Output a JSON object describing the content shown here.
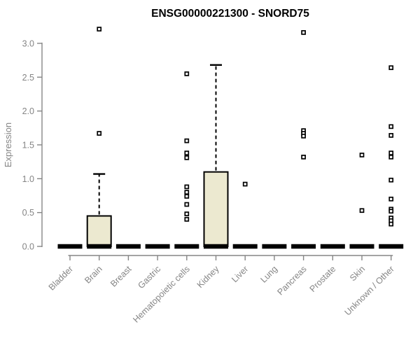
{
  "chart_data": {
    "type": "boxplot",
    "title": "ENSG00000221300 - SNORD75",
    "xlabel": "",
    "ylabel": "Expression",
    "ylim": [
      0,
      3.3
    ],
    "yticks": [
      0,
      0.5,
      1,
      1.5,
      2,
      2.5,
      3
    ],
    "ytick_labels": [
      "0.0",
      "0.5",
      "1.0",
      "1.5",
      "2.0",
      "2.5",
      "3.0"
    ],
    "grid": false,
    "legend": null,
    "marker": "open-square",
    "categories": [
      "Bladder",
      "Brain",
      "Breast",
      "Gastric",
      "Hematopoietic cells",
      "Kidney",
      "Liver",
      "Lung",
      "Pancreas",
      "Prostate",
      "Skin",
      "Unknown / Other"
    ],
    "boxes": [
      {
        "category": "Bladder",
        "low": 0,
        "q1": 0,
        "median": 0,
        "q3": 0,
        "high": 0,
        "outliers": []
      },
      {
        "category": "Brain",
        "low": 0,
        "q1": 0,
        "median": 0,
        "q3": 0.45,
        "high": 1.07,
        "outliers": [
          3.21,
          1.67
        ]
      },
      {
        "category": "Breast",
        "low": 0,
        "q1": 0,
        "median": 0,
        "q3": 0,
        "high": 0,
        "outliers": []
      },
      {
        "category": "Gastric",
        "low": 0,
        "q1": 0,
        "median": 0,
        "q3": 0,
        "high": 0,
        "outliers": []
      },
      {
        "category": "Hematopoietic cells",
        "low": 0,
        "q1": 0,
        "median": 0,
        "q3": 0,
        "high": 0,
        "outliers": [
          2.55,
          1.56,
          1.38,
          1.31,
          0.88,
          0.8,
          0.74,
          0.62,
          0.48,
          0.4
        ]
      },
      {
        "category": "Kidney",
        "low": 0,
        "q1": 0,
        "median": 0,
        "q3": 1.1,
        "high": 2.68,
        "outliers": []
      },
      {
        "category": "Liver",
        "low": 0,
        "q1": 0,
        "median": 0,
        "q3": 0,
        "high": 0,
        "outliers": [
          0.92
        ]
      },
      {
        "category": "Lung",
        "low": 0,
        "q1": 0,
        "median": 0,
        "q3": 0,
        "high": 0,
        "outliers": []
      },
      {
        "category": "Pancreas",
        "low": 0,
        "q1": 0,
        "median": 0,
        "q3": 0,
        "high": 0,
        "outliers": [
          3.16,
          1.71,
          1.67,
          1.63,
          1.32
        ]
      },
      {
        "category": "Prostate",
        "low": 0,
        "q1": 0,
        "median": 0,
        "q3": 0,
        "high": 0,
        "outliers": []
      },
      {
        "category": "Skin",
        "low": 0,
        "q1": 0,
        "median": 0,
        "q3": 0,
        "high": 0,
        "outliers": [
          1.35,
          0.53
        ]
      },
      {
        "category": "Unknown / Other",
        "low": 0,
        "q1": 0,
        "median": 0,
        "q3": 0,
        "high": 0,
        "outliers": [
          2.64,
          1.77,
          1.64,
          1.38,
          1.32,
          0.98,
          0.7,
          0.55,
          0.52,
          0.42,
          0.38,
          0.33
        ]
      }
    ],
    "colors": {
      "box_fill": "#ece9d0",
      "box_stroke": "#000000",
      "median_color": "#000000",
      "whisker_color": "#000000",
      "outlier_stroke": "#000000",
      "outlier_fill": "#ffffff",
      "axis_color": "#858585",
      "title_color": "#000000",
      "background": "#ffffff"
    }
  }
}
